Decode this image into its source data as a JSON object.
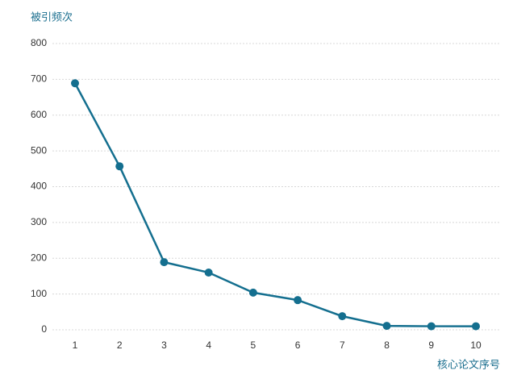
{
  "chart_data": {
    "type": "line",
    "y_label": "被引频次",
    "x_label": "核心论文序号",
    "categories": [
      "1",
      "2",
      "3",
      "4",
      "5",
      "6",
      "7",
      "8",
      "9",
      "10"
    ],
    "values": [
      689,
      457,
      189,
      160,
      104,
      83,
      38,
      11,
      10,
      10
    ],
    "color": "#146f8f",
    "ylim": [
      0,
      800
    ],
    "yticks": [
      0,
      100,
      200,
      300,
      400,
      500,
      600,
      700,
      800
    ],
    "grid": true
  }
}
